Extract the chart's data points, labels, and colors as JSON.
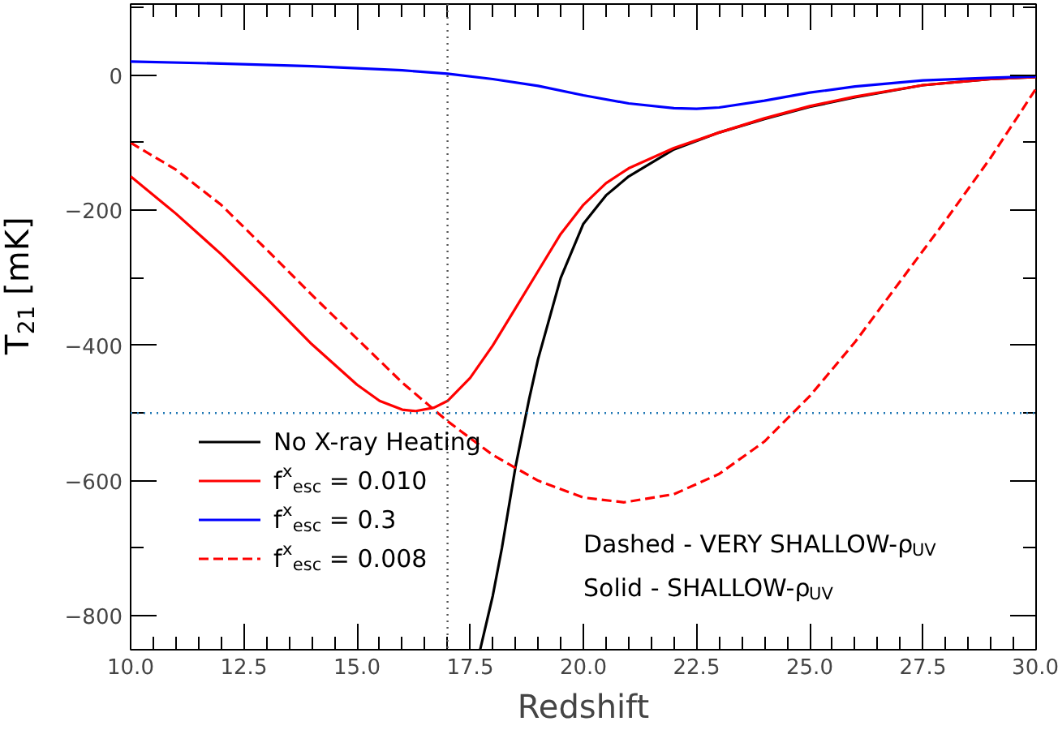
{
  "chart_data": {
    "type": "line",
    "xlabel": "Redshift",
    "ylabel": "T$_{21}$ [mK]",
    "xlim": [
      10,
      30
    ],
    "ylim": [
      -850,
      105
    ],
    "xticks": [
      {
        "value": 10,
        "label": "10.0"
      },
      12.5,
      {
        "value": 15,
        "label": "15.0"
      },
      17.5,
      {
        "value": 20,
        "label": "20.0"
      },
      22.5,
      {
        "value": 25,
        "label": "25.0"
      },
      27.5,
      {
        "value": 30,
        "label": "30.0"
      }
    ],
    "yticks": [
      {
        "value": -800,
        "label": "−800"
      },
      {
        "value": -600,
        "label": "−600"
      },
      {
        "value": -400,
        "label": "−400"
      },
      {
        "value": -200,
        "label": "−200"
      },
      0
    ],
    "grid": false,
    "legend": "bottom left",
    "line_style": "solid",
    "marker": "none",
    "series": [
      {
        "name": "No X-ray Heating",
        "color": "#000000",
        "x": [
          17.72,
          18.0,
          18.2,
          18.5,
          18.8,
          19.0,
          19.5,
          20.0,
          20.5,
          21.0,
          22.0,
          23.0,
          24.0,
          25.0,
          26.0,
          27.5,
          29.0,
          30.0
        ],
        "values": [
          -850,
          -770,
          -700,
          -580,
          -480,
          -420,
          -300,
          -220,
          -178,
          -150,
          -110,
          -85,
          -65,
          -47,
          -33,
          -15,
          -6,
          -3
        ]
      },
      {
        "name": "f$^{x}$$_{esc}$ = 0.010",
        "color": "#ff0000",
        "x": [
          10,
          11,
          12,
          13,
          14,
          15,
          15.5,
          16.0,
          16.3,
          16.7,
          17.0,
          17.5,
          18.0,
          18.5,
          19.0,
          19.5,
          20.0,
          20.5,
          21.0,
          22.0,
          23.0,
          24.0,
          25.0,
          26.0,
          27.5,
          29.0,
          30.0
        ],
        "values": [
          -150,
          -205,
          -265,
          -330,
          -398,
          -458,
          -482,
          -495,
          -497,
          -492,
          -482,
          -448,
          -400,
          -345,
          -290,
          -235,
          -192,
          -160,
          -138,
          -108,
          -85,
          -64,
          -46,
          -32,
          -15,
          -6,
          -3
        ]
      },
      {
        "name": "f$^{x}$$_{esc}$ = 0.3",
        "color": "#0000ff",
        "x": [
          10,
          12,
          14,
          16,
          17,
          18,
          19,
          20,
          21,
          22,
          22.5,
          23,
          24,
          25,
          26,
          27.5,
          29,
          30
        ],
        "values": [
          20,
          17,
          13,
          7,
          2,
          -6,
          -16,
          -30,
          -42,
          -49,
          -50,
          -48,
          -38,
          -26,
          -17,
          -8,
          -4,
          -2
        ]
      },
      {
        "name": "f$^{x}$$_{esc}$ = 0.008",
        "color": "#ff0000",
        "line_style": "dashed",
        "x": [
          10,
          11,
          12,
          13,
          14,
          15,
          16,
          17,
          18,
          19,
          20,
          20.9,
          22,
          23,
          24,
          25,
          26,
          27,
          28,
          29,
          30
        ],
        "values": [
          -100,
          -140,
          -192,
          -258,
          -325,
          -390,
          -455,
          -512,
          -562,
          -600,
          -625,
          -632,
          -620,
          -590,
          -542,
          -475,
          -395,
          -305,
          -215,
          -122,
          -20
        ]
      }
    ],
    "ref_lines": [
      {
        "axis": "x",
        "value": 17,
        "color": "#555555",
        "line_style": "dotted"
      },
      {
        "axis": "y",
        "value": -500,
        "color": "#1f77b4",
        "line_style": "dotted"
      }
    ],
    "annotations": [
      "Dashed - VERY SHALLOW-ρ$_{UV}$",
      "Solid - SHALLOW-ρ$_{UV}$"
    ]
  }
}
